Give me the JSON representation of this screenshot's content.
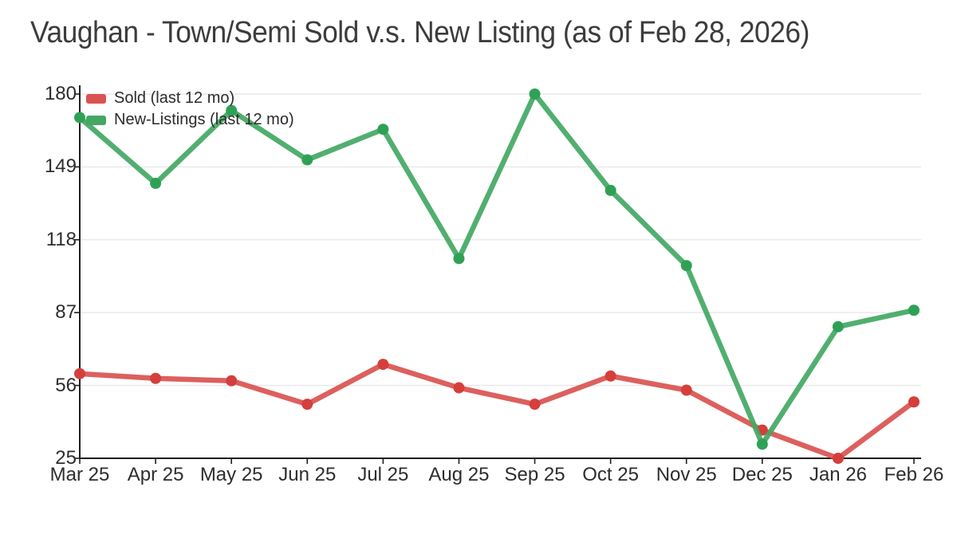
{
  "chart_data": {
    "type": "line",
    "title": "Vaughan - Town/Semi Sold v.s. New Listing (as of Feb 28, 2026)",
    "categories": [
      "Mar 25",
      "Apr 25",
      "May 25",
      "Jun 25",
      "Jul 25",
      "Aug 25",
      "Sep 25",
      "Oct 25",
      "Nov 25",
      "Dec 25",
      "Jan 26",
      "Feb 26"
    ],
    "series": [
      {
        "name": "Sold (last 12 mo)",
        "color": "#d95350",
        "marker_color": "#d43f3c",
        "values": [
          61,
          59,
          58,
          48,
          65,
          55,
          48,
          60,
          54,
          37,
          25,
          49
        ]
      },
      {
        "name": "New-Listings (last 12 mo)",
        "color": "#42a863",
        "marker_color": "#2fa156",
        "values": [
          170,
          142,
          173,
          152,
          165,
          110,
          180,
          139,
          107,
          31,
          81,
          88
        ]
      }
    ],
    "yticks": [
      25,
      56,
      87,
      118,
      149,
      180
    ],
    "ylim": [
      25,
      180
    ],
    "xlabel": "",
    "ylabel": "",
    "grid": "horizontal",
    "legend_position": "top-left"
  },
  "colors": {
    "background": "#ffffff",
    "grid": "#e8e8e8",
    "axis": "#1f1f1f",
    "tick_text": "#2d2d2d",
    "title_text": "#3c3c3c"
  }
}
